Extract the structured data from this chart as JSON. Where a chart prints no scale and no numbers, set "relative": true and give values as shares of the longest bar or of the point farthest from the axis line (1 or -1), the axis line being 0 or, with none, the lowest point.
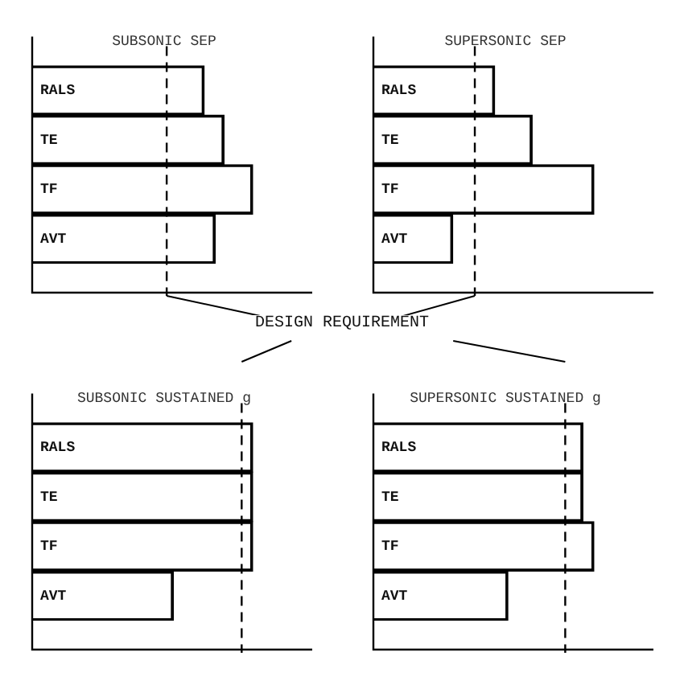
{
  "chart_data": [
    {
      "type": "bar",
      "orientation": "horizontal",
      "relative": true,
      "title": "SUBSONIC SEP",
      "categories": [
        "RALS",
        "TE",
        "TF",
        "AVT"
      ],
      "values": [
        0.78,
        0.87,
        1,
        0.83
      ],
      "color": "#000000",
      "ref_lines": [
        {
          "axis": "x",
          "value": 0.61,
          "line_style": "dashed",
          "color": "#000000"
        }
      ],
      "annotations": [
        "DESIGN REQUIREMENT"
      ],
      "tick_labels": "y",
      "grid": false,
      "legend": false
    },
    {
      "type": "bar",
      "orientation": "horizontal",
      "relative": true,
      "title": "SUPERSONIC SEP",
      "categories": [
        "RALS",
        "TE",
        "TF",
        "AVT"
      ],
      "values": [
        0.55,
        0.72,
        1,
        0.36
      ],
      "color": "#000000",
      "ref_lines": [
        {
          "axis": "x",
          "value": 0.46,
          "line_style": "dashed",
          "color": "#000000"
        }
      ],
      "tick_labels": "y",
      "grid": false,
      "legend": false
    },
    {
      "type": "bar",
      "orientation": "horizontal",
      "relative": true,
      "title": "SUBSONIC SUSTAINED g",
      "categories": [
        "RALS",
        "TE",
        "TF",
        "AVT"
      ],
      "values": [
        1,
        1,
        1,
        0.64
      ],
      "color": "#000000",
      "ref_lines": [
        {
          "axis": "x",
          "value": 0.95,
          "line_style": "dashed",
          "color": "#000000"
        }
      ],
      "tick_labels": "y",
      "grid": false,
      "legend": false
    },
    {
      "type": "bar",
      "orientation": "horizontal",
      "relative": true,
      "title": "SUPERSONIC SUSTAINED g",
      "categories": [
        "RALS",
        "TE",
        "TF",
        "AVT"
      ],
      "values": [
        0.95,
        0.95,
        1,
        0.61
      ],
      "color": "#000000",
      "ref_lines": [
        {
          "axis": "x",
          "value": 0.87,
          "line_style": "dashed",
          "color": "#000000"
        }
      ],
      "tick_labels": "y",
      "grid": false,
      "legend": false
    }
  ]
}
